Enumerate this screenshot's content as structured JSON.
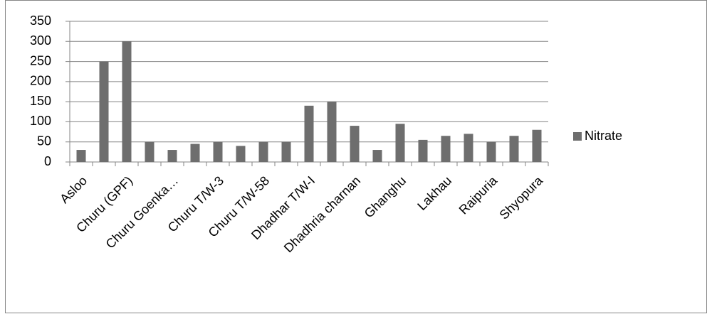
{
  "chart_data": {
    "type": "bar",
    "categories": [
      "Asloo",
      null,
      "Churu (GPF)",
      null,
      "Churu Goenka…",
      null,
      "Churu T/W-3",
      null,
      "Churu T/W-58",
      null,
      "Dhadhar T/W-I",
      null,
      "Dhadhria charnan",
      null,
      "Ghanghu",
      null,
      "Lakhau",
      null,
      "Raipuria",
      null,
      "Shyopura"
    ],
    "series": [
      {
        "name": "Nitrate",
        "color": "#6e6e6e",
        "values": [
          30,
          250,
          300,
          50,
          30,
          45,
          50,
          40,
          50,
          50,
          140,
          150,
          90,
          30,
          95,
          55,
          65,
          70,
          50,
          65,
          80
        ]
      }
    ],
    "ylim": [
      0,
      350
    ],
    "yticks": [
      0,
      50,
      100,
      150,
      200,
      250,
      300,
      350
    ],
    "grid": true,
    "legend": "right"
  }
}
